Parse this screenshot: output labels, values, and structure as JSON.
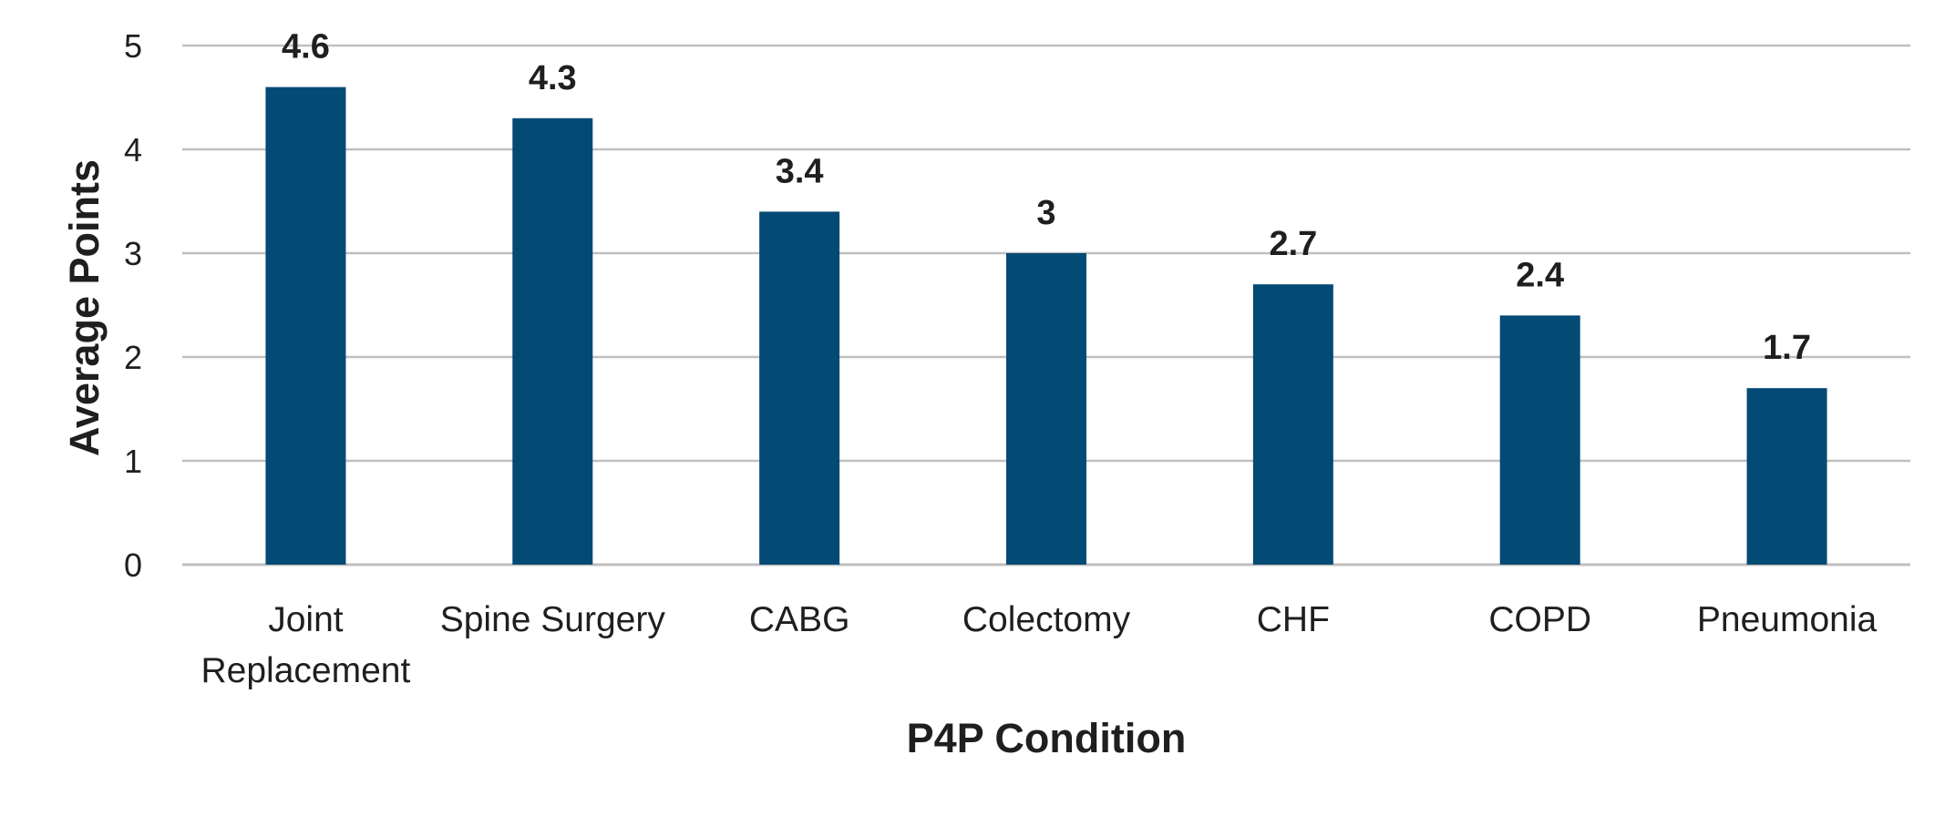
{
  "chart_data": {
    "type": "bar",
    "title": "",
    "xlabel": "P4P Condition",
    "ylabel": "Average Points",
    "categories": [
      [
        "Joint",
        "Replacement"
      ],
      [
        "Spine Surgery"
      ],
      [
        "CABG"
      ],
      [
        "Colectomy"
      ],
      [
        "CHF"
      ],
      [
        "COPD"
      ],
      [
        "Pneumonia"
      ]
    ],
    "values": [
      4.6,
      4.3,
      3.4,
      3,
      2.7,
      2.4,
      1.7
    ],
    "value_labels": [
      "4.6",
      "4.3",
      "3.4",
      "3",
      "2.7",
      "2.4",
      "1.7"
    ],
    "ylim": [
      0,
      5
    ],
    "yticks": [
      "0",
      "1",
      "2",
      "3",
      "4",
      "5"
    ],
    "grid": true,
    "legend": "none",
    "colors": {
      "bar": "#034a75",
      "grid": "#bfbfbf",
      "text": "#1f1f1f"
    }
  }
}
